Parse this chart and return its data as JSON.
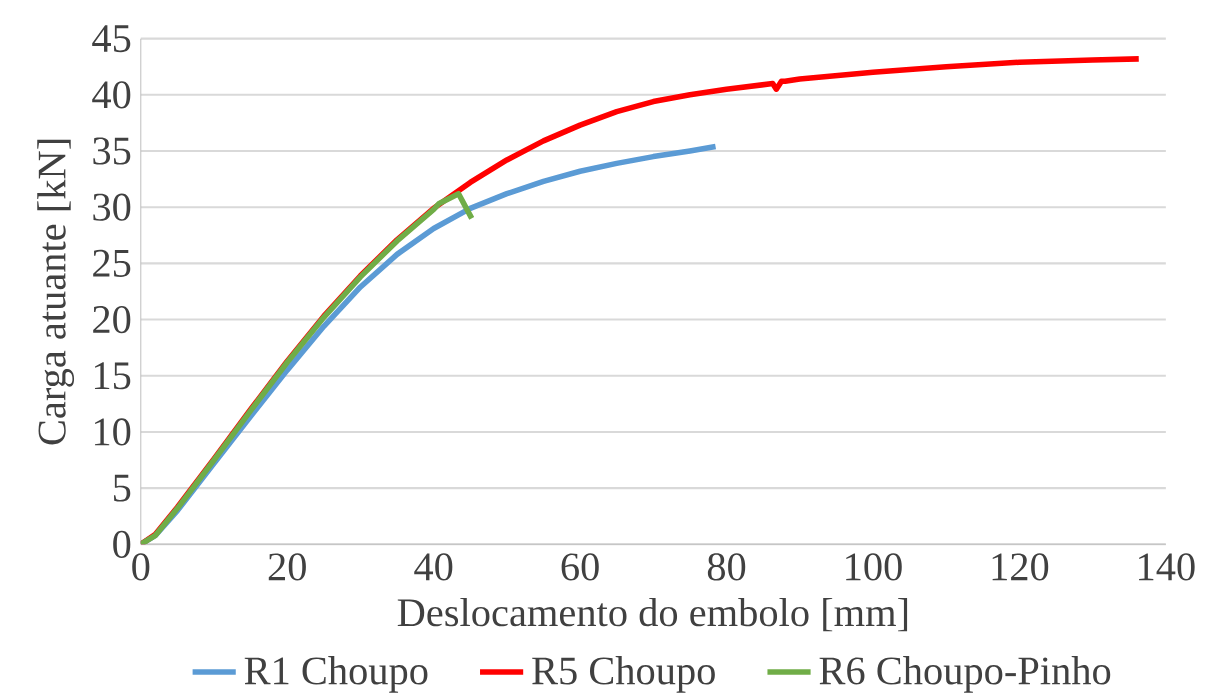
{
  "chart_data": {
    "type": "line",
    "xlabel": "Deslocamento do embolo [mm]",
    "ylabel": "Carga atuante [kN]",
    "xlim": [
      0,
      140
    ],
    "ylim": [
      0,
      45
    ],
    "xticks": [
      0,
      20,
      40,
      60,
      80,
      100,
      120,
      140
    ],
    "yticks": [
      0,
      5,
      10,
      15,
      20,
      25,
      30,
      35,
      40,
      45
    ],
    "grid": "y",
    "legend": "bottom",
    "marker": "none",
    "line_style": "solid",
    "series": [
      {
        "name": "R1 Choupo",
        "color": "#5b9bd5",
        "x": [
          0,
          2,
          5,
          10,
          15,
          20,
          25,
          30,
          35,
          40,
          45,
          50,
          55,
          60,
          65,
          70,
          75,
          78.5
        ],
        "values": [
          0,
          0.8,
          3,
          7.2,
          11.4,
          15.5,
          19.4,
          22.9,
          25.8,
          28.1,
          29.9,
          31.2,
          32.3,
          33.2,
          33.9,
          34.5,
          35,
          35.4
        ]
      },
      {
        "name": "R5 Choupo",
        "color": "#ff0000",
        "x": [
          0,
          2,
          5,
          10,
          15,
          20,
          25,
          30,
          35,
          40,
          45,
          50,
          55,
          60,
          65,
          70,
          75,
          80,
          86.3,
          86.8,
          87.5,
          88,
          90,
          100,
          110,
          120,
          130,
          136.3
        ],
        "values": [
          0,
          0.9,
          3.3,
          7.6,
          12,
          16.3,
          20.3,
          23.9,
          27.1,
          29.9,
          32.2,
          34.2,
          35.9,
          37.3,
          38.5,
          39.4,
          40,
          40.5,
          41,
          40.5,
          41.2,
          41.2,
          41.4,
          42,
          42.5,
          42.9,
          43.1,
          43.2
        ]
      },
      {
        "name": "R6 Choupo-Pinho",
        "color": "#70ad47",
        "x": [
          0,
          2,
          5,
          10,
          15,
          20,
          25,
          30,
          35,
          40,
          40.7,
          43.4,
          45.2
        ],
        "values": [
          0,
          0.8,
          3.2,
          7.5,
          11.9,
          16.2,
          20.2,
          23.8,
          27,
          29.8,
          30.3,
          31.2,
          29
        ]
      }
    ]
  }
}
